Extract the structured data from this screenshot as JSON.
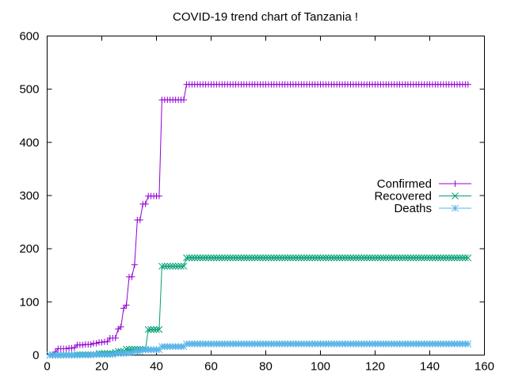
{
  "chart_data": {
    "type": "line",
    "title": "COVID-19 trend chart of Tanzania !",
    "xlabel": "",
    "ylabel": "",
    "xlim": [
      0,
      160
    ],
    "ylim": [
      0,
      600
    ],
    "xticks": [
      0,
      20,
      40,
      60,
      80,
      100,
      120,
      140,
      160
    ],
    "yticks": [
      0,
      100,
      200,
      300,
      400,
      500,
      600
    ],
    "grid": false,
    "legend_position": "right",
    "x": [
      1,
      2,
      3,
      4,
      5,
      6,
      7,
      8,
      9,
      10,
      11,
      12,
      13,
      14,
      15,
      16,
      17,
      18,
      19,
      20,
      21,
      22,
      23,
      24,
      25,
      26,
      27,
      28,
      29,
      30,
      31,
      32,
      33,
      34,
      35,
      36,
      37,
      38,
      39,
      40,
      41,
      42,
      43,
      44,
      45,
      46,
      47,
      48,
      49,
      50,
      51,
      52,
      53,
      54,
      55,
      56,
      57,
      58,
      59,
      60,
      61,
      62,
      63,
      64,
      65,
      66,
      67,
      68,
      69,
      70,
      71,
      72,
      73,
      74,
      75,
      76,
      77,
      78,
      79,
      80,
      81,
      82,
      83,
      84,
      85,
      86,
      87,
      88,
      89,
      90,
      91,
      92,
      93,
      94,
      95,
      96,
      97,
      98,
      99,
      100,
      101,
      102,
      103,
      104,
      105,
      106,
      107,
      108,
      109,
      110,
      111,
      112,
      113,
      114,
      115,
      116,
      117,
      118,
      119,
      120,
      121,
      122,
      123,
      124,
      125,
      126,
      127,
      128,
      129,
      130,
      131,
      132,
      133,
      134,
      135,
      136,
      137,
      138,
      139,
      140,
      141,
      142,
      143,
      144,
      145,
      146,
      147,
      148,
      149,
      150,
      151,
      152,
      153,
      154
    ],
    "series": [
      {
        "name": "Confirmed",
        "color": "#9400d3",
        "marker": "plus",
        "values": [
          1,
          1,
          6,
          12,
          12,
          12,
          12,
          13,
          13,
          14,
          19,
          19,
          19,
          20,
          20,
          20,
          22,
          22,
          24,
          24,
          25,
          25,
          32,
          32,
          32,
          49,
          53,
          88,
          94,
          147,
          147,
          170,
          254,
          254,
          284,
          284,
          299,
          299,
          299,
          299,
          299,
          480,
          480,
          480,
          480,
          480,
          480,
          480,
          480,
          480,
          509,
          509,
          509,
          509,
          509,
          509,
          509,
          509,
          509,
          509,
          509,
          509,
          509,
          509,
          509,
          509,
          509,
          509,
          509,
          509,
          509,
          509,
          509,
          509,
          509,
          509,
          509,
          509,
          509,
          509,
          509,
          509,
          509,
          509,
          509,
          509,
          509,
          509,
          509,
          509,
          509,
          509,
          509,
          509,
          509,
          509,
          509,
          509,
          509,
          509,
          509,
          509,
          509,
          509,
          509,
          509,
          509,
          509,
          509,
          509,
          509,
          509,
          509,
          509,
          509,
          509,
          509,
          509,
          509,
          509,
          509,
          509,
          509,
          509,
          509,
          509,
          509,
          509,
          509,
          509,
          509,
          509,
          509,
          509,
          509,
          509,
          509,
          509,
          509,
          509,
          509,
          509,
          509,
          509,
          509,
          509,
          509,
          509,
          509,
          509,
          509,
          509,
          509,
          509
        ]
      },
      {
        "name": "Recovered",
        "color": "#009e73",
        "marker": "cross",
        "values": [
          0,
          0,
          0,
          0,
          0,
          0,
          0,
          0,
          0,
          0,
          1,
          1,
          1,
          1,
          1,
          1,
          1,
          1,
          3,
          3,
          3,
          3,
          3,
          3,
          5,
          7,
          7,
          7,
          11,
          11,
          11,
          11,
          11,
          11,
          11,
          11,
          48,
          48,
          48,
          48,
          48,
          167,
          167,
          167,
          167,
          167,
          167,
          167,
          167,
          167,
          183,
          183,
          183,
          183,
          183,
          183,
          183,
          183,
          183,
          183,
          183,
          183,
          183,
          183,
          183,
          183,
          183,
          183,
          183,
          183,
          183,
          183,
          183,
          183,
          183,
          183,
          183,
          183,
          183,
          183,
          183,
          183,
          183,
          183,
          183,
          183,
          183,
          183,
          183,
          183,
          183,
          183,
          183,
          183,
          183,
          183,
          183,
          183,
          183,
          183,
          183,
          183,
          183,
          183,
          183,
          183,
          183,
          183,
          183,
          183,
          183,
          183,
          183,
          183,
          183,
          183,
          183,
          183,
          183,
          183,
          183,
          183,
          183,
          183,
          183,
          183,
          183,
          183,
          183,
          183,
          183,
          183,
          183,
          183,
          183,
          183,
          183,
          183,
          183,
          183,
          183,
          183,
          183,
          183,
          183,
          183,
          183,
          183,
          183,
          183,
          183,
          183,
          183,
          183
        ]
      },
      {
        "name": "Deaths",
        "color": "#56b4e9",
        "marker": "star",
        "values": [
          0,
          0,
          0,
          0,
          0,
          0,
          0,
          0,
          0,
          0,
          0,
          0,
          0,
          0,
          0,
          0,
          1,
          1,
          1,
          1,
          1,
          1,
          1,
          1,
          3,
          3,
          3,
          3,
          4,
          4,
          4,
          7,
          7,
          7,
          10,
          10,
          10,
          10,
          10,
          10,
          10,
          16,
          16,
          16,
          16,
          16,
          16,
          16,
          16,
          16,
          21,
          21,
          21,
          21,
          21,
          21,
          21,
          21,
          21,
          21,
          21,
          21,
          21,
          21,
          21,
          21,
          21,
          21,
          21,
          21,
          21,
          21,
          21,
          21,
          21,
          21,
          21,
          21,
          21,
          21,
          21,
          21,
          21,
          21,
          21,
          21,
          21,
          21,
          21,
          21,
          21,
          21,
          21,
          21,
          21,
          21,
          21,
          21,
          21,
          21,
          21,
          21,
          21,
          21,
          21,
          21,
          21,
          21,
          21,
          21,
          21,
          21,
          21,
          21,
          21,
          21,
          21,
          21,
          21,
          21,
          21,
          21,
          21,
          21,
          21,
          21,
          21,
          21,
          21,
          21,
          21,
          21,
          21,
          21,
          21,
          21,
          21,
          21,
          21,
          21,
          21,
          21,
          21,
          21,
          21,
          21,
          21,
          21,
          21,
          21,
          21,
          21,
          21,
          21
        ]
      }
    ]
  }
}
